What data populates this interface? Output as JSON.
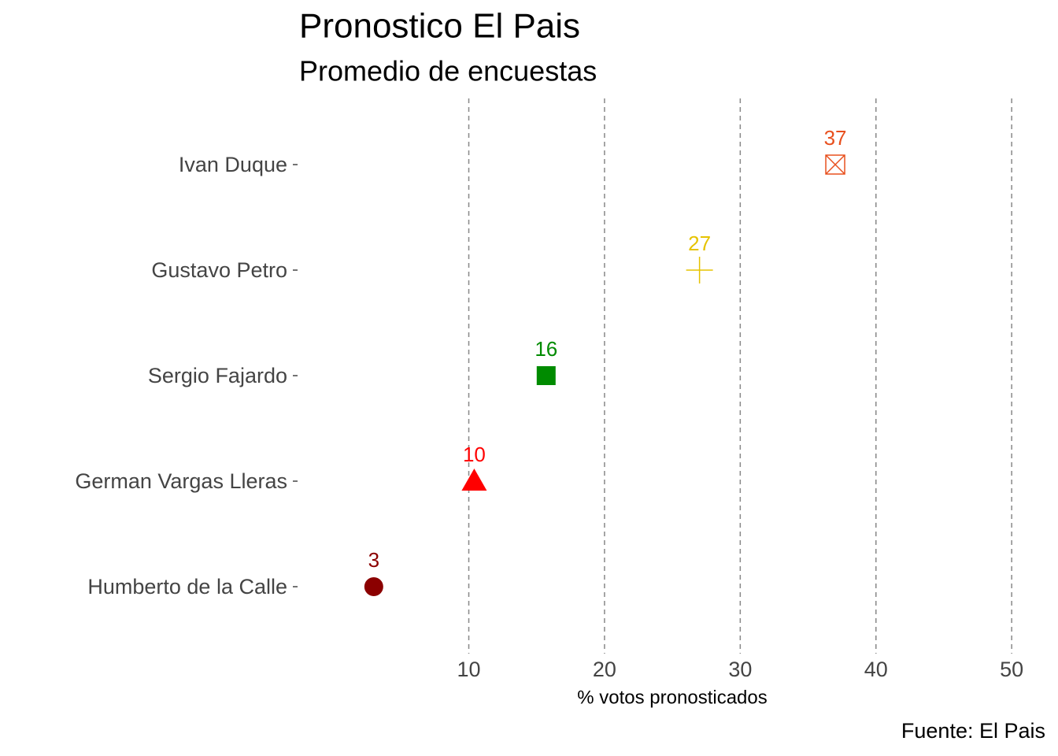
{
  "chart_data": {
    "type": "dot",
    "title": "Pronostico El Pais",
    "subtitle": "Promedio de encuestas",
    "x_label": "% votos pronosticados",
    "caption": "Fuente: El Pais",
    "categories": [
      "Ivan Duque",
      "Gustavo Petro",
      "Sergio Fajardo",
      "German Vargas Lleras",
      "Humberto de la Calle"
    ],
    "values": [
      37,
      27,
      15.7,
      10.4,
      3
    ],
    "value_labels": [
      "37",
      "27",
      "16",
      "10",
      "3"
    ],
    "colors": [
      "#e8501e",
      "#e6c300",
      "#008b00",
      "#ff0000",
      "#8b0000"
    ],
    "shapes": [
      "square-cross",
      "plus",
      "square",
      "triangle",
      "circle"
    ],
    "xlim": [
      -2.5,
      52.6
    ],
    "xticks": [
      10,
      20,
      30,
      40,
      50
    ],
    "grid": true
  }
}
